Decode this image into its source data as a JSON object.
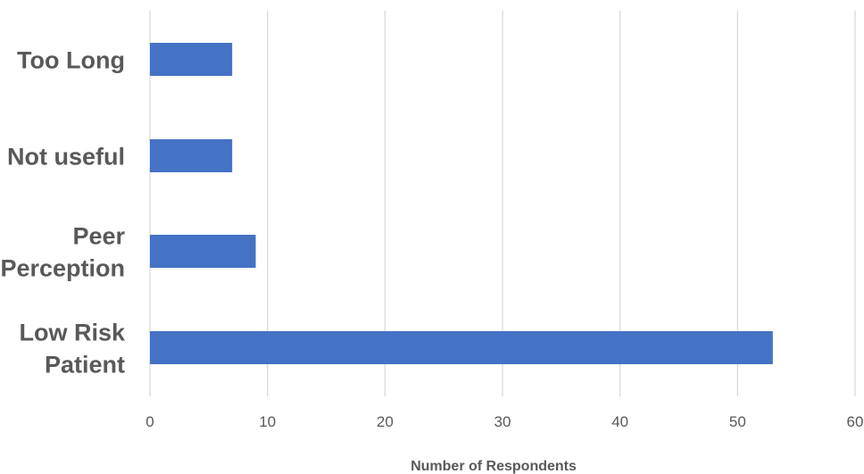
{
  "chart_data": {
    "type": "bar",
    "orientation": "horizontal",
    "categories": [
      "Too Long",
      "Not useful",
      "Peer Perception",
      "Low Risk Patient"
    ],
    "category_lines": [
      [
        "Too Long"
      ],
      [
        "Not useful"
      ],
      [
        "Peer",
        "Perception"
      ],
      [
        "Low Risk",
        "Patient"
      ]
    ],
    "values": [
      7,
      7,
      9,
      53
    ],
    "title": "",
    "xlabel": "Number of Respondents",
    "ylabel": "",
    "xlim": [
      0,
      60
    ],
    "x_ticks": [
      "0",
      "10",
      "20",
      "30",
      "40",
      "50",
      "60"
    ],
    "grid": "vertical",
    "legend": "none",
    "bar_color": "#4472C4",
    "grid_color": "#D9D9D9",
    "text_color": "#595959"
  }
}
